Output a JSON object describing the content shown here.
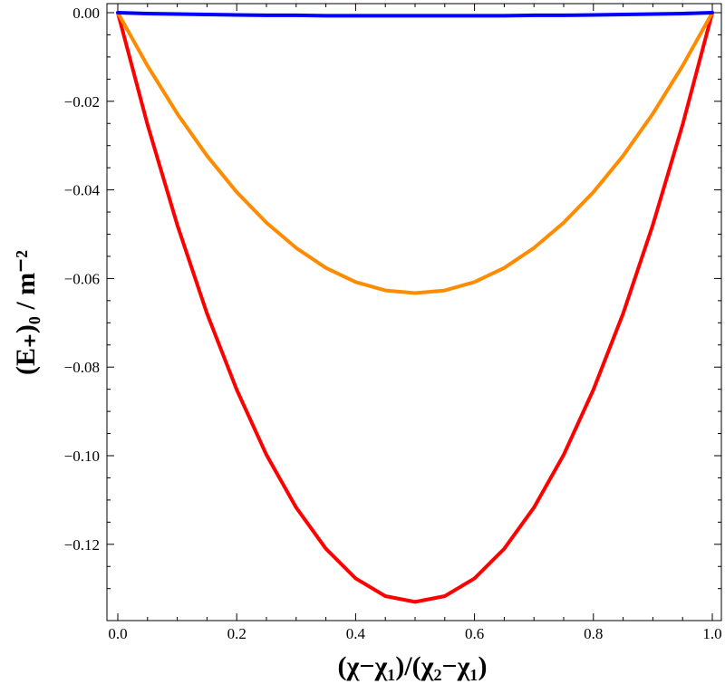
{
  "chart_data": {
    "type": "line",
    "xlabel": "(χ−χ₁)/(χ₂−χ₁)",
    "ylabel": "(E₊)₀ / m⁻²",
    "xlim": [
      0.0,
      1.0
    ],
    "ylim": [
      -0.134,
      0.0
    ],
    "x_ticks": [
      "0.0",
      "0.2",
      "0.4",
      "0.6",
      "0.8",
      "1.0"
    ],
    "y_ticks": [
      "0.00",
      "−0.02",
      "−0.04",
      "−0.06",
      "−0.08",
      "−0.10",
      "−0.12"
    ],
    "grid": false,
    "x": [
      0.0,
      0.05,
      0.1,
      0.15,
      0.2,
      0.25,
      0.3,
      0.35,
      0.4,
      0.45,
      0.5,
      0.55,
      0.6,
      0.65,
      0.7,
      0.75,
      0.8,
      0.85,
      0.9,
      0.95,
      1.0
    ],
    "series": [
      {
        "color": "#0000ff",
        "values": [
          0.0,
          -0.0002,
          -0.0003,
          -0.0004,
          -0.0005,
          -0.0006,
          -0.0006,
          -0.0007,
          -0.0007,
          -0.0007,
          -0.0007,
          -0.0007,
          -0.0007,
          -0.0007,
          -0.0006,
          -0.0006,
          -0.0005,
          -0.0004,
          -0.0003,
          -0.0002,
          0.0
        ]
      },
      {
        "color": "#ff8c00",
        "values": [
          0.0,
          -0.012,
          -0.0228,
          -0.0323,
          -0.0405,
          -0.0474,
          -0.0531,
          -0.0576,
          -0.0608,
          -0.0627,
          -0.0633,
          -0.0627,
          -0.0608,
          -0.0576,
          -0.0531,
          -0.0474,
          -0.0405,
          -0.0323,
          -0.0228,
          -0.012,
          0.0
        ]
      },
      {
        "color": "#ff0000",
        "values": [
          0.0,
          -0.0253,
          -0.0479,
          -0.0679,
          -0.0851,
          -0.0998,
          -0.1117,
          -0.121,
          -0.1277,
          -0.1317,
          -0.133,
          -0.1317,
          -0.1277,
          -0.121,
          -0.1117,
          -0.0998,
          -0.0851,
          -0.0679,
          -0.0479,
          -0.0253,
          0.0
        ]
      }
    ]
  }
}
